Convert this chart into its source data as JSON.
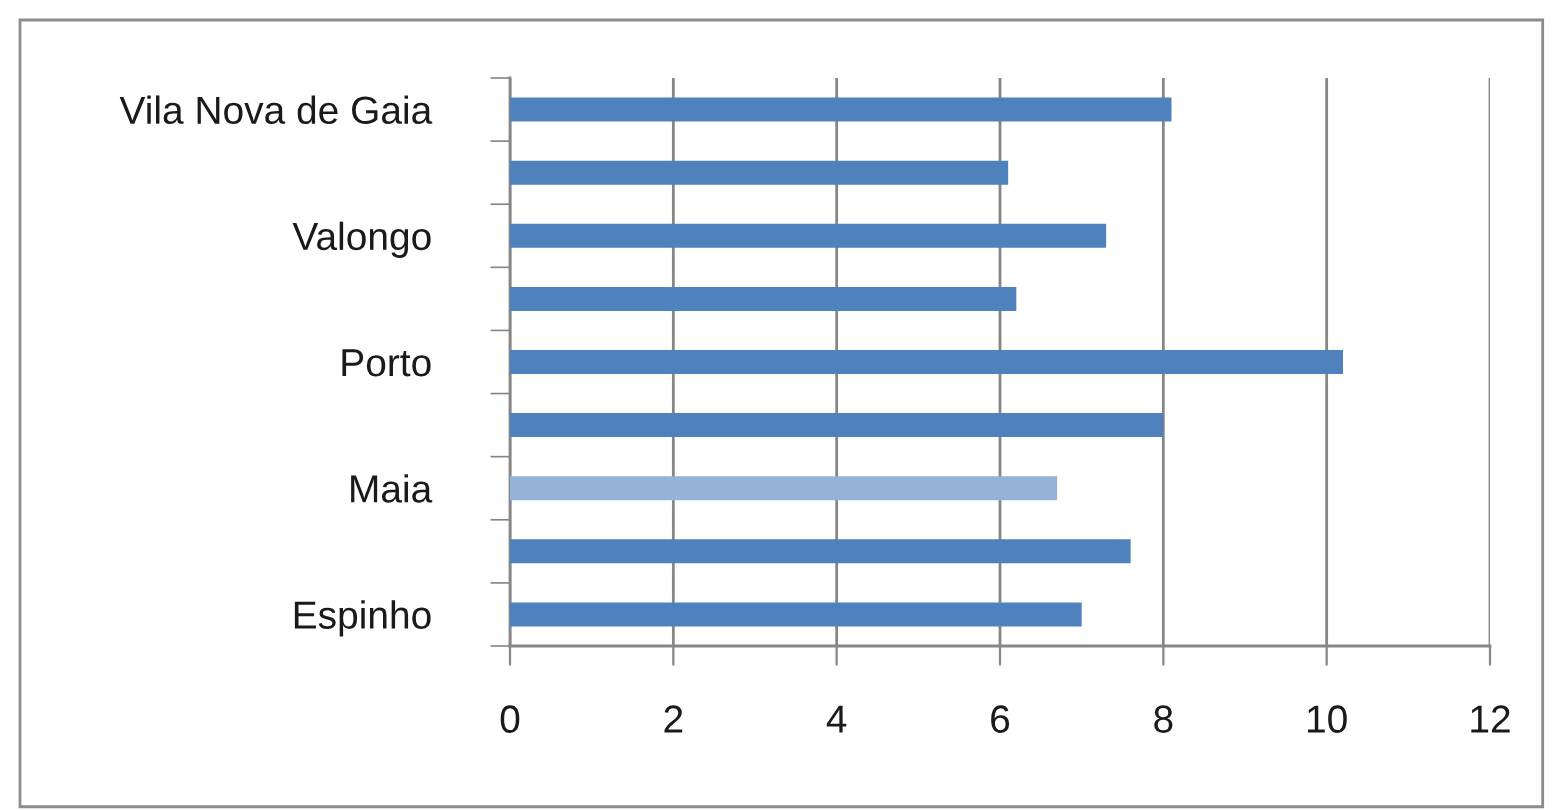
{
  "chart_data": {
    "type": "bar",
    "orientation": "horizontal",
    "categories": [
      "Vila Nova de Gaia",
      null,
      "Valongo",
      null,
      "Porto",
      null,
      "Maia",
      null,
      "Espinho"
    ],
    "values": [
      8.1,
      6.1,
      7.3,
      6.2,
      10.2,
      8.0,
      6.7,
      7.6,
      7.0
    ],
    "colors": [
      "#4f81bd",
      "#4f81bd",
      "#4f81bd",
      "#4f81bd",
      "#4f81bd",
      "#4f81bd",
      "#95b3d7",
      "#4f81bd",
      "#4f81bd"
    ],
    "xlim": [
      0,
      12
    ],
    "xticks": [
      0,
      2,
      4,
      6,
      8,
      10,
      12
    ],
    "grid": "x"
  }
}
